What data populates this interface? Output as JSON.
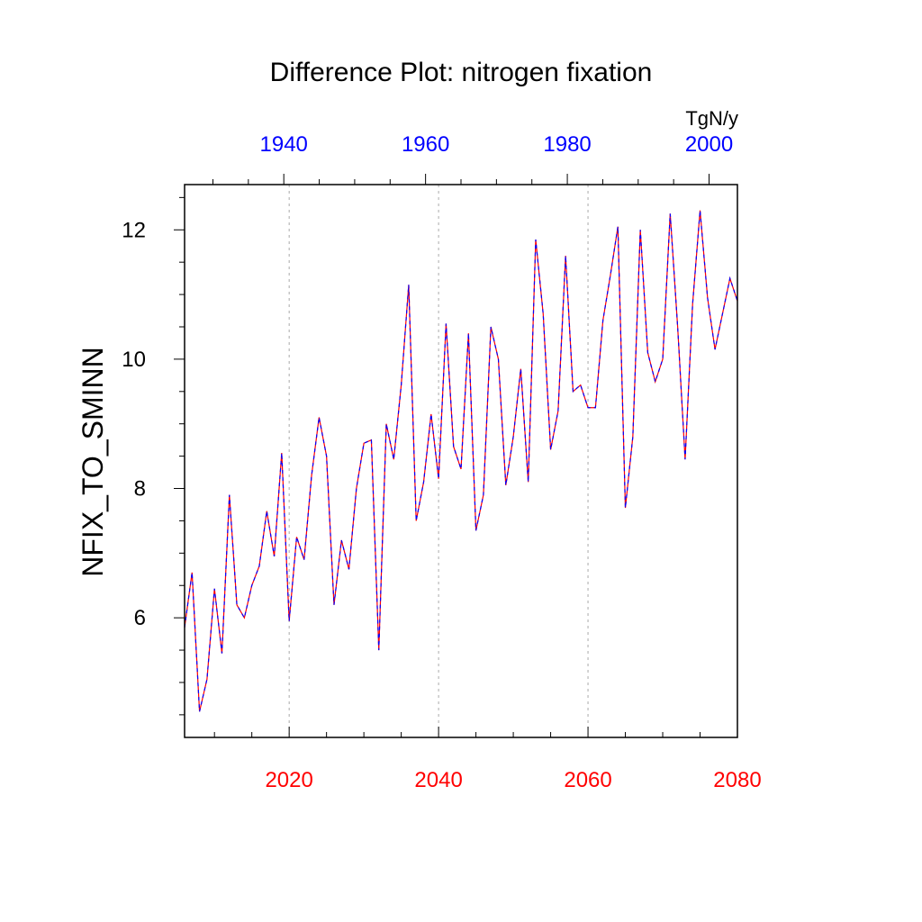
{
  "chart_data": {
    "type": "line",
    "title": "Difference Plot: nitrogen fixation",
    "ylabel": "NFIX_TO_SMINN",
    "units": "TgN/y",
    "bottom_axis": {
      "range": [
        2006,
        2080
      ],
      "ticks": [
        2020,
        2040,
        2060,
        2080
      ],
      "minor_step": 5,
      "color": "#ff0000"
    },
    "top_axis": {
      "range": [
        1926,
        2004
      ],
      "ticks": [
        1940,
        1960,
        1980,
        2000
      ],
      "minor_step": 5,
      "color": "#0000ff"
    },
    "y_axis": {
      "range": [
        4.15,
        12.7
      ],
      "ticks": [
        6,
        8,
        10,
        12
      ],
      "minor_step": 0.5
    },
    "gridlines_x": [
      2020,
      2040,
      2060
    ],
    "series": [
      {
        "name": "red series",
        "color": "#ff0000",
        "x": [
          2006,
          2007,
          2008,
          2009,
          2010,
          2011,
          2012,
          2013,
          2014,
          2015,
          2016,
          2017,
          2018,
          2019,
          2020,
          2021,
          2022,
          2023,
          2024,
          2025,
          2026,
          2027,
          2028,
          2029,
          2030,
          2031,
          2032,
          2033,
          2034,
          2035,
          2036,
          2037,
          2038,
          2039,
          2040,
          2041,
          2042,
          2043,
          2044,
          2045,
          2046,
          2047,
          2048,
          2049,
          2050,
          2051,
          2052,
          2053,
          2054,
          2055,
          2056,
          2057,
          2058,
          2059,
          2060,
          2061,
          2062,
          2063,
          2064,
          2065,
          2066,
          2067,
          2068,
          2069,
          2070,
          2071,
          2072,
          2073,
          2074,
          2075,
          2076,
          2077,
          2078,
          2079,
          2080
        ],
        "values": [
          5.85,
          6.7,
          4.55,
          5.05,
          6.45,
          5.45,
          7.9,
          6.2,
          6.0,
          6.5,
          6.8,
          7.65,
          6.95,
          8.55,
          5.95,
          7.25,
          6.9,
          8.2,
          9.1,
          8.5,
          6.2,
          7.2,
          6.75,
          8.0,
          8.7,
          8.75,
          5.5,
          9.0,
          8.45,
          9.6,
          11.15,
          7.5,
          8.1,
          9.15,
          8.15,
          10.55,
          8.65,
          8.3,
          10.4,
          7.35,
          7.9,
          10.5,
          10.0,
          8.05,
          8.8,
          9.85,
          8.1,
          11.85,
          10.7,
          8.6,
          9.2,
          11.6,
          9.5,
          9.6,
          9.25,
          9.25,
          10.6,
          11.3,
          12.05,
          7.7,
          8.8,
          12.0,
          10.1,
          9.65,
          10.0,
          12.25,
          10.5,
          8.45,
          10.85,
          12.3,
          10.95,
          10.15,
          10.7,
          11.25,
          10.9
        ]
      },
      {
        "name": "blue series",
        "color": "#0000ff",
        "x": [
          2006,
          2007,
          2008,
          2009,
          2010,
          2011,
          2012,
          2013,
          2014,
          2015,
          2016,
          2017,
          2018,
          2019,
          2020,
          2021,
          2022,
          2023,
          2024,
          2025,
          2026,
          2027,
          2028,
          2029,
          2030,
          2031,
          2032,
          2033,
          2034,
          2035,
          2036,
          2037,
          2038,
          2039,
          2040,
          2041,
          2042,
          2043,
          2044,
          2045,
          2046,
          2047,
          2048,
          2049,
          2050,
          2051,
          2052,
          2053,
          2054,
          2055,
          2056,
          2057,
          2058,
          2059,
          2060,
          2061,
          2062,
          2063,
          2064,
          2065,
          2066,
          2067,
          2068,
          2069,
          2070,
          2071,
          2072,
          2073,
          2074,
          2075,
          2076,
          2077,
          2078,
          2079,
          2080
        ],
        "values": [
          5.85,
          6.7,
          4.55,
          5.05,
          6.45,
          5.45,
          7.9,
          6.2,
          6.0,
          6.5,
          6.8,
          7.65,
          6.95,
          8.55,
          5.95,
          7.25,
          6.9,
          8.2,
          9.1,
          8.5,
          6.2,
          7.2,
          6.75,
          8.0,
          8.7,
          8.75,
          5.5,
          9.0,
          8.45,
          9.6,
          11.15,
          7.5,
          8.1,
          9.15,
          8.15,
          10.55,
          8.65,
          8.3,
          10.4,
          7.35,
          7.9,
          10.5,
          10.0,
          8.05,
          8.8,
          9.85,
          8.1,
          11.85,
          10.7,
          8.6,
          9.2,
          11.6,
          9.5,
          9.6,
          9.25,
          9.25,
          10.6,
          11.3,
          12.05,
          7.7,
          8.8,
          12.0,
          10.1,
          9.65,
          10.0,
          12.25,
          10.5,
          8.45,
          10.85,
          12.3,
          10.95,
          10.15,
          10.7,
          11.25,
          10.9
        ]
      }
    ]
  }
}
